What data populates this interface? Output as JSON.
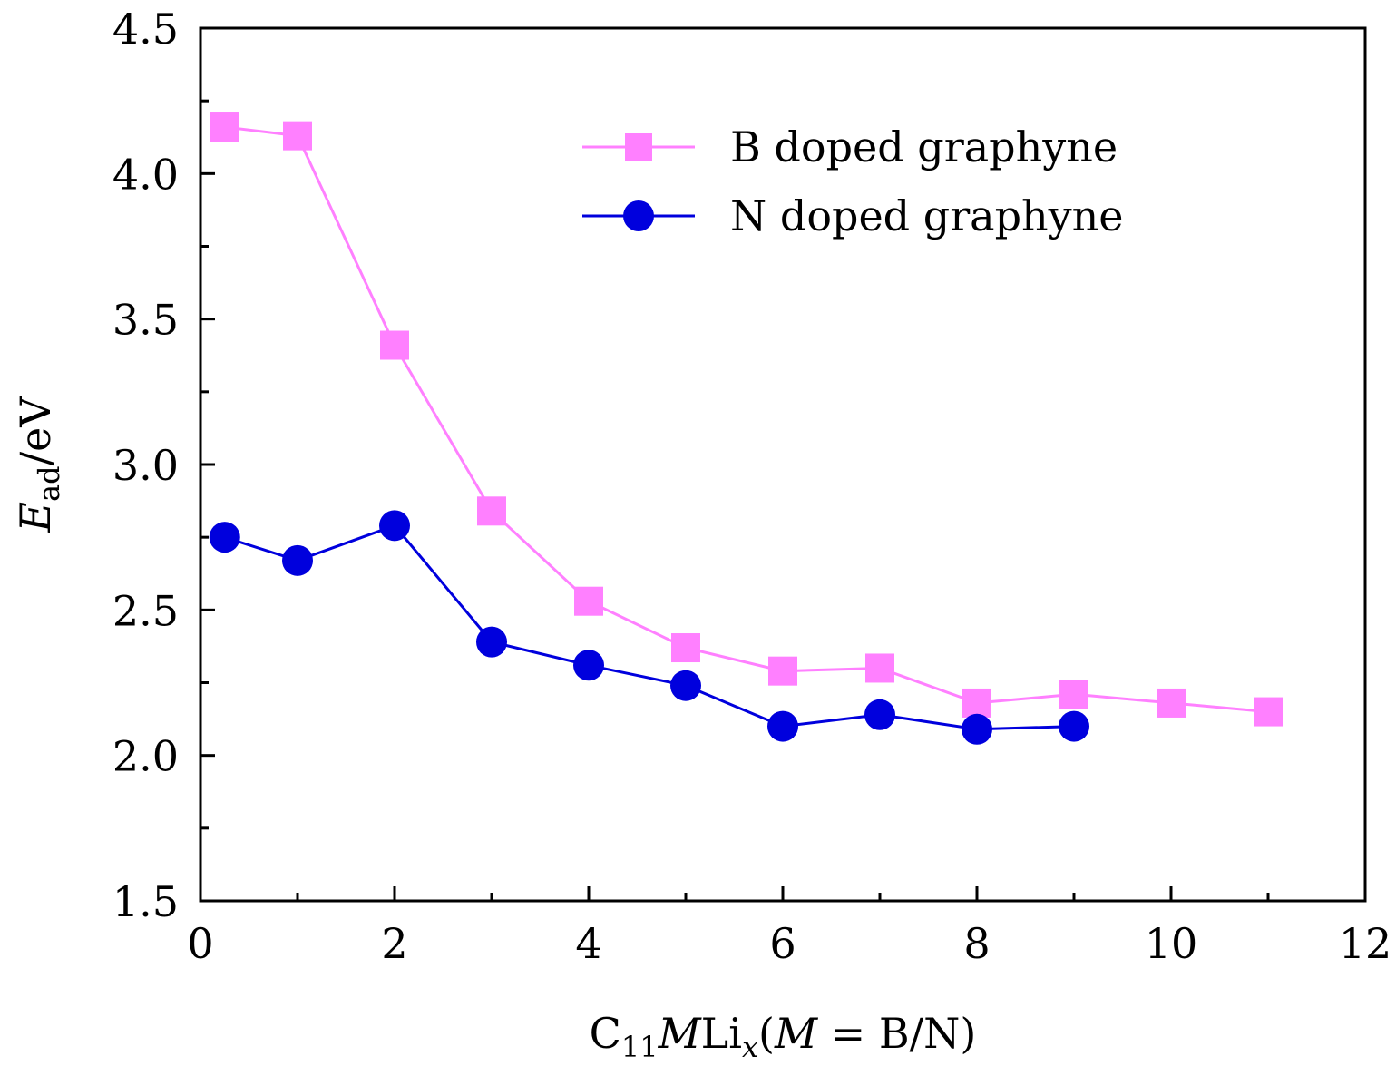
{
  "chart_data": {
    "type": "line",
    "title": "",
    "xlabel": {
      "base": "C",
      "sub1": "11",
      "italic1": "M",
      "mid": "Li",
      "sub2": "x",
      "open": "(",
      "italic2": "M",
      "rest": " = B/N)"
    },
    "ylabel": {
      "italic": "E",
      "sub": "ad",
      "rest": "/eV"
    },
    "xlim": [
      0,
      12
    ],
    "ylim": [
      1.5,
      4.5
    ],
    "xticks": [
      0,
      2,
      4,
      6,
      8,
      10,
      12
    ],
    "xtick_labels": [
      "0",
      "2",
      "4",
      "6",
      "8",
      "10",
      "12"
    ],
    "yticks": [
      1.5,
      2.0,
      2.5,
      3.0,
      3.5,
      4.0,
      4.5
    ],
    "ytick_labels": [
      "1.5",
      "2.0",
      "2.5",
      "3.0",
      "3.5",
      "4.0",
      "4.5"
    ],
    "grid": false,
    "legend_position": "top-right",
    "series": [
      {
        "name": "B doped graphyne",
        "color": "#ff80ff",
        "marker": "square",
        "x": [
          0.25,
          1,
          2,
          3,
          4,
          5,
          6,
          7,
          8,
          9,
          10,
          11
        ],
        "y": [
          4.16,
          4.13,
          3.41,
          2.84,
          2.53,
          2.37,
          2.29,
          2.3,
          2.18,
          2.21,
          2.18,
          2.15
        ]
      },
      {
        "name": "N doped graphyne",
        "color": "#0000dd",
        "marker": "circle",
        "x": [
          0.25,
          1,
          2,
          3,
          4,
          5,
          6,
          7,
          8,
          9
        ],
        "y": [
          2.75,
          2.67,
          2.79,
          2.39,
          2.31,
          2.24,
          2.1,
          2.14,
          2.09,
          2.1
        ]
      }
    ]
  }
}
